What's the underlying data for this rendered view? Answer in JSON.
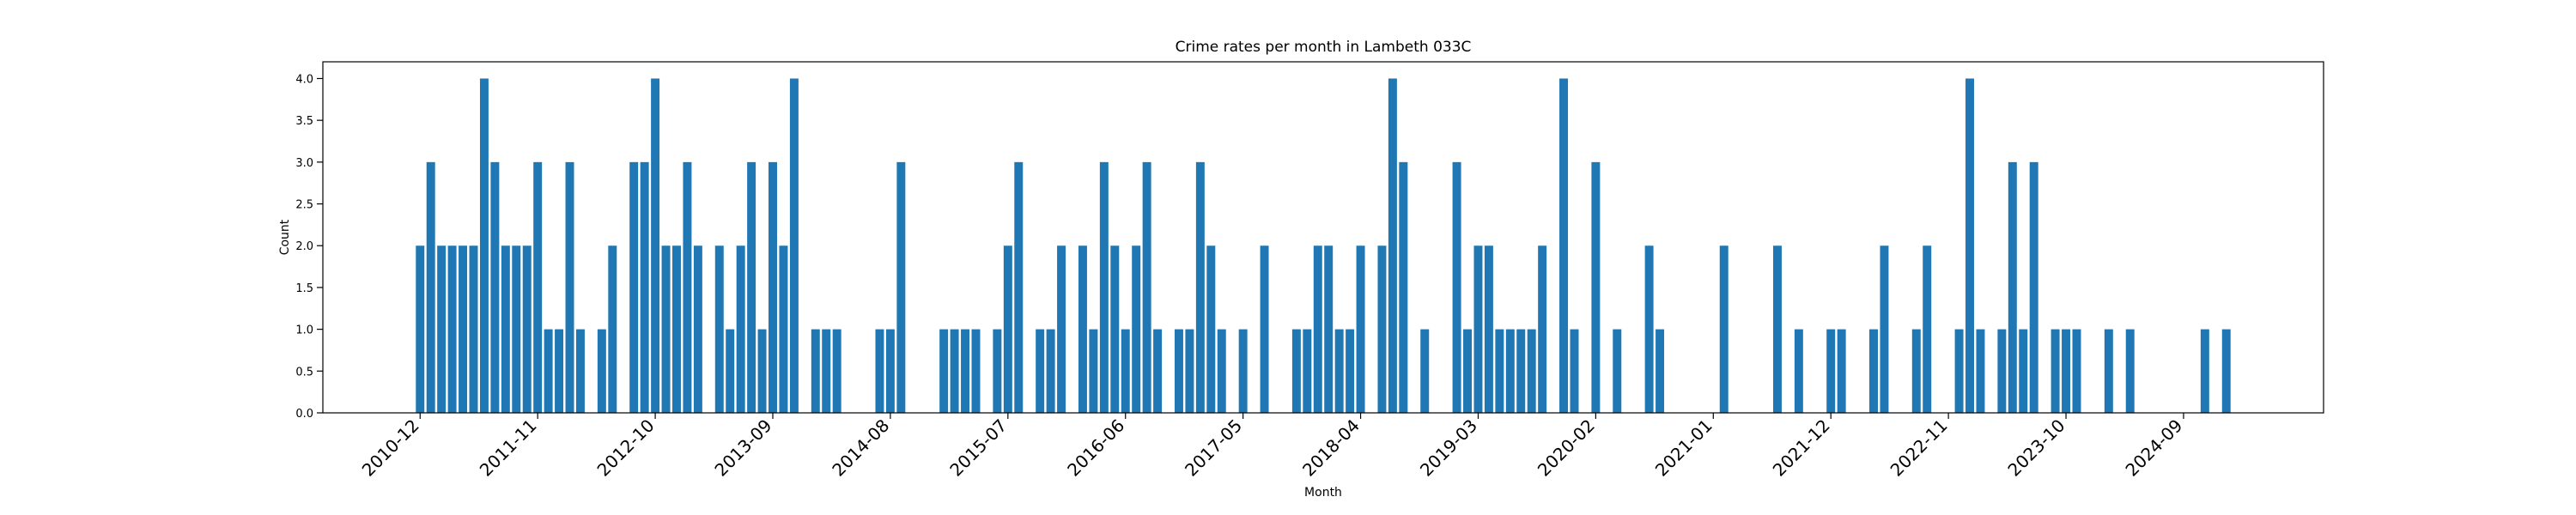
{
  "chart_data": {
    "type": "bar",
    "title": "Crime rates per month in Lambeth 033C",
    "xlabel": "Month",
    "ylabel": "Count",
    "ylim": [
      0,
      4.2
    ],
    "yticks": [
      "0.0",
      "0.5",
      "1.0",
      "1.5",
      "2.0",
      "2.5",
      "3.0",
      "3.5",
      "4.0"
    ],
    "xticks": [
      "2010-12",
      "2011-11",
      "2012-10",
      "2013-09",
      "2014-08",
      "2015-07",
      "2016-06",
      "2017-05",
      "2018-04",
      "2019-03",
      "2020-02",
      "2021-01",
      "2021-12",
      "2022-11",
      "2023-10",
      "2024-09"
    ],
    "grid": false,
    "bar_color": "#1f77b4",
    "x": [
      "2010-12",
      "2011-01",
      "2011-02",
      "2011-03",
      "2011-04",
      "2011-05",
      "2011-06",
      "2011-07",
      "2011-08",
      "2011-09",
      "2011-10",
      "2011-11",
      "2011-12",
      "2012-01",
      "2012-02",
      "2012-03",
      "2012-05",
      "2012-06",
      "2012-08",
      "2012-09",
      "2012-10",
      "2012-11",
      "2012-12",
      "2013-01",
      "2013-02",
      "2013-04",
      "2013-05",
      "2013-06",
      "2013-07",
      "2013-08",
      "2013-09",
      "2013-10",
      "2013-11",
      "2014-01",
      "2014-02",
      "2014-03",
      "2014-07",
      "2014-08",
      "2014-09",
      "2015-01",
      "2015-02",
      "2015-03",
      "2015-04",
      "2015-06",
      "2015-07",
      "2015-08",
      "2015-10",
      "2015-11",
      "2015-12",
      "2016-02",
      "2016-03",
      "2016-04",
      "2016-05",
      "2016-06",
      "2016-07",
      "2016-08",
      "2016-09",
      "2016-11",
      "2016-12",
      "2017-01",
      "2017-02",
      "2017-03",
      "2017-05",
      "2017-07",
      "2017-10",
      "2017-11",
      "2017-12",
      "2018-01",
      "2018-02",
      "2018-03",
      "2018-04",
      "2018-06",
      "2018-07",
      "2018-08",
      "2018-10",
      "2019-01",
      "2019-02",
      "2019-03",
      "2019-04",
      "2019-05",
      "2019-06",
      "2019-07",
      "2019-08",
      "2019-09",
      "2019-11",
      "2019-12",
      "2020-02",
      "2020-04",
      "2020-07",
      "2020-08",
      "2021-02",
      "2021-07",
      "2021-09",
      "2021-12",
      "2022-01",
      "2022-04",
      "2022-05",
      "2022-08",
      "2022-09",
      "2022-12",
      "2023-01",
      "2023-02",
      "2023-04",
      "2023-05",
      "2023-06",
      "2023-07",
      "2023-09",
      "2023-10",
      "2023-11",
      "2024-02",
      "2024-04",
      "2024-11",
      "2025-01"
    ],
    "values": [
      2,
      3,
      2,
      2,
      2,
      2,
      4,
      3,
      2,
      2,
      2,
      3,
      1,
      1,
      3,
      1,
      1,
      2,
      3,
      3,
      4,
      2,
      2,
      3,
      2,
      2,
      1,
      2,
      3,
      1,
      3,
      2,
      4,
      1,
      1,
      1,
      1,
      1,
      3,
      1,
      1,
      1,
      1,
      1,
      2,
      3,
      1,
      1,
      2,
      2,
      1,
      3,
      2,
      1,
      2,
      3,
      1,
      1,
      1,
      3,
      2,
      1,
      1,
      2,
      1,
      1,
      2,
      2,
      1,
      1,
      2,
      2,
      4,
      3,
      1,
      3,
      1,
      2,
      2,
      1,
      1,
      1,
      1,
      2,
      4,
      1,
      3,
      1,
      2,
      1,
      2,
      2,
      1,
      1,
      1,
      1,
      2,
      1,
      2,
      1,
      4,
      1,
      1,
      3,
      1,
      3,
      1,
      1,
      1,
      1,
      1,
      1,
      1
    ]
  }
}
